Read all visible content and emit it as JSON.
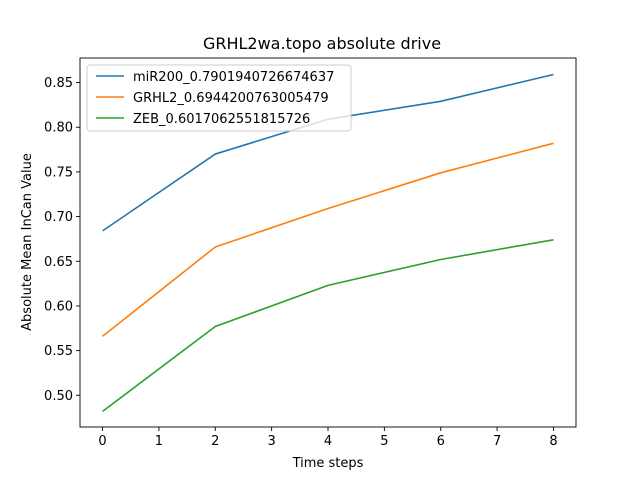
{
  "chart_data": {
    "type": "line",
    "title": "GRHL2wa.topo absolute drive",
    "xlabel": "Time steps",
    "ylabel": "Absolute Mean InCan Value",
    "xlim": [
      -0.4,
      8.4
    ],
    "ylim": [
      0.4645,
      0.8775
    ],
    "xticks": [
      0,
      1,
      2,
      3,
      4,
      5,
      6,
      7,
      8
    ],
    "yticks": [
      0.5,
      0.55,
      0.6,
      0.65,
      0.7,
      0.75,
      0.8,
      0.85
    ],
    "ytick_labels": [
      "0.50",
      "0.55",
      "0.60",
      "0.65",
      "0.70",
      "0.75",
      "0.80",
      "0.85"
    ],
    "x": [
      0,
      2,
      4,
      6,
      8
    ],
    "series": [
      {
        "name": "miR200_0.7901940726674637",
        "color": "#1f77b4",
        "values": [
          0.684,
          0.77,
          0.809,
          0.829,
          0.859
        ]
      },
      {
        "name": "GRHL2_0.6944200763005479",
        "color": "#ff7f0e",
        "values": [
          0.566,
          0.666,
          0.709,
          0.749,
          0.782
        ]
      },
      {
        "name": "ZEB_0.6017062551815726",
        "color": "#2ca02c",
        "values": [
          0.482,
          0.577,
          0.623,
          0.652,
          0.674
        ]
      }
    ],
    "legend": "top-left",
    "grid": false
  }
}
